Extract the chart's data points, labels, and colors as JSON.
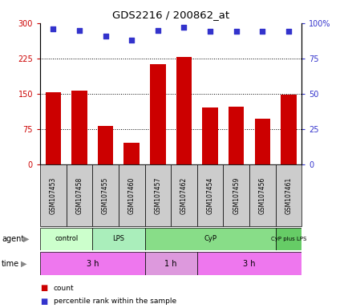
{
  "title": "GDS2216 / 200862_at",
  "samples": [
    "GSM107453",
    "GSM107458",
    "GSM107455",
    "GSM107460",
    "GSM107457",
    "GSM107462",
    "GSM107454",
    "GSM107459",
    "GSM107456",
    "GSM107461"
  ],
  "counts": [
    153,
    157,
    82,
    47,
    213,
    228,
    122,
    123,
    98,
    148
  ],
  "percentile_ranks": [
    96,
    95,
    91,
    88,
    95,
    97,
    94,
    94,
    94,
    94
  ],
  "ylim_left": [
    0,
    300
  ],
  "ylim_right": [
    0,
    100
  ],
  "yticks_left": [
    0,
    75,
    150,
    225,
    300
  ],
  "ytick_labels_left": [
    "0",
    "75",
    "150",
    "225",
    "300"
  ],
  "yticks_right": [
    0,
    25,
    50,
    75,
    100
  ],
  "ytick_labels_right": [
    "0",
    "25",
    "50",
    "75",
    "100%"
  ],
  "bar_color": "#cc0000",
  "dot_color": "#3333cc",
  "agent_groups": [
    {
      "label": "control",
      "start": 0,
      "end": 2,
      "color": "#ccffcc"
    },
    {
      "label": "LPS",
      "start": 2,
      "end": 4,
      "color": "#aaeebb"
    },
    {
      "label": "CyP",
      "start": 4,
      "end": 9,
      "color": "#88dd88"
    },
    {
      "label": "CyP plus LPS",
      "start": 9,
      "end": 10,
      "color": "#66cc66"
    }
  ],
  "time_groups": [
    {
      "label": "3 h",
      "start": 0,
      "end": 4,
      "color": "#ee77ee"
    },
    {
      "label": "1 h",
      "start": 4,
      "end": 6,
      "color": "#dd99dd"
    },
    {
      "label": "3 h",
      "start": 6,
      "end": 10,
      "color": "#ee77ee"
    }
  ],
  "grid_lines": [
    75,
    150,
    225
  ],
  "legend_items": [
    {
      "color": "#cc0000",
      "label": "count"
    },
    {
      "color": "#3333cc",
      "label": "percentile rank within the sample"
    }
  ],
  "bg_color": "#ffffff",
  "xticklabel_bg": "#cccccc"
}
